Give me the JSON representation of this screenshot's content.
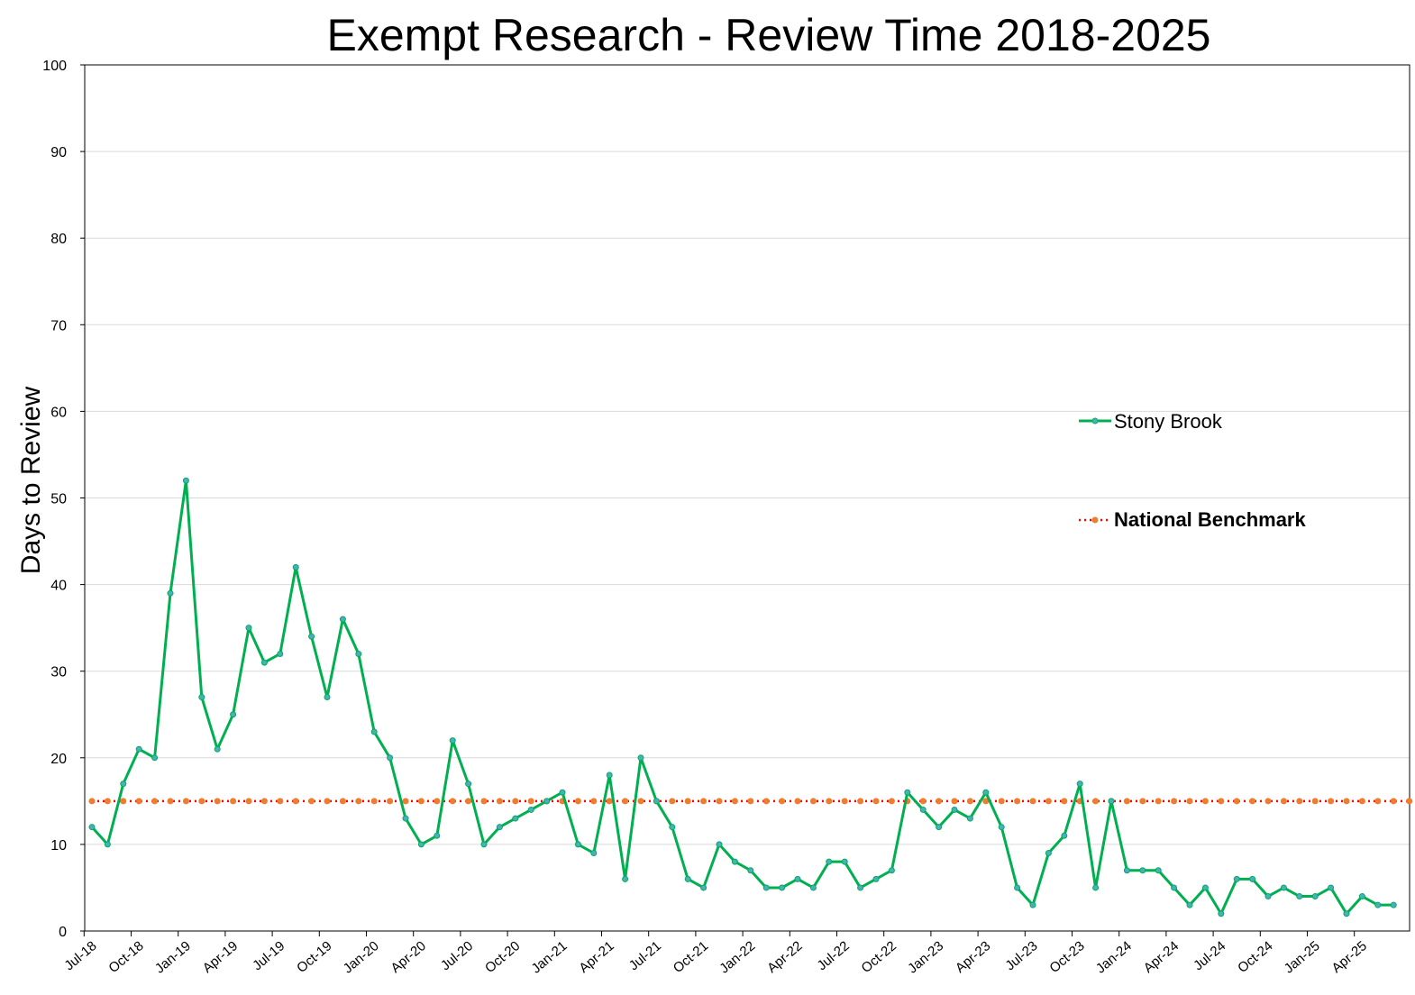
{
  "chart_data": {
    "type": "line",
    "title": "Exempt Research - Review Time 2018-2025",
    "ylabel": "Days to Review",
    "xlabel": "",
    "ylim": [
      0,
      100
    ],
    "yticks": [
      0,
      10,
      20,
      30,
      40,
      50,
      60,
      70,
      80,
      90,
      100
    ],
    "grid": true,
    "legend_placement": "right",
    "x_start": "Jul-18",
    "x_end": "Jun-25",
    "x_tick_labels": [
      "Jul-18",
      "Oct-18",
      "Jan-19",
      "Apr-19",
      "Jul-19",
      "Oct-19",
      "Jan-20",
      "Apr-20",
      "Jul-20",
      "Oct-20",
      "Jan-21",
      "Apr-21",
      "Jul-21",
      "Oct-21",
      "Jan-22",
      "Apr-22",
      "Jul-22",
      "Oct-22",
      "Jan-23",
      "Apr-23",
      "Jul-23",
      "Oct-23",
      "Jan-24",
      "Apr-24",
      "Jul-24",
      "Oct-24",
      "Jan-25",
      "Apr-25"
    ],
    "series": [
      {
        "name": "Stony Brook",
        "color": "#00b050",
        "marker_color": "#4bacc6",
        "values": [
          12,
          10,
          17,
          21,
          20,
          39,
          52,
          27,
          21,
          25,
          35,
          31,
          32,
          42,
          34,
          27,
          36,
          32,
          23,
          20,
          13,
          10,
          11,
          22,
          17,
          10,
          12,
          13,
          14,
          15,
          16,
          10,
          9,
          18,
          6,
          20,
          15,
          12,
          6,
          5,
          10,
          8,
          7,
          5,
          5,
          6,
          5,
          8,
          8,
          5,
          6,
          7,
          16,
          14,
          12,
          14,
          13,
          16,
          12,
          5,
          3,
          9,
          11,
          17,
          5,
          15,
          7,
          7,
          7,
          5,
          3,
          5,
          2,
          6,
          6,
          4,
          5,
          4,
          4,
          5,
          2,
          4,
          3,
          3
        ]
      },
      {
        "name": "National Benchmark",
        "color": "#ff0000",
        "marker_color": "#ed7d31",
        "style": "dotted",
        "values": [
          15,
          15,
          15,
          15,
          15,
          15,
          15,
          15,
          15,
          15,
          15,
          15,
          15,
          15,
          15,
          15,
          15,
          15,
          15,
          15,
          15,
          15,
          15,
          15,
          15,
          15,
          15,
          15,
          15,
          15,
          15,
          15,
          15,
          15,
          15,
          15,
          15,
          15,
          15,
          15,
          15,
          15,
          15,
          15,
          15,
          15,
          15,
          15,
          15,
          15,
          15,
          15,
          15,
          15,
          15,
          15,
          15,
          15,
          15,
          15,
          15,
          15,
          15,
          15,
          15,
          15,
          15,
          15,
          15,
          15,
          15,
          15,
          15,
          15,
          15,
          15,
          15,
          15,
          15,
          15,
          15,
          15,
          15,
          15,
          15
        ]
      }
    ]
  }
}
